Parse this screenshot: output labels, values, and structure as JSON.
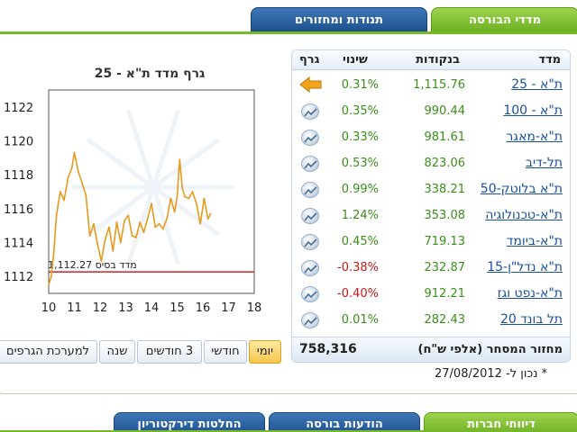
{
  "top_tabs": [
    {
      "label": "מדדי הבורסה",
      "color": "#78b62a",
      "active": true
    },
    {
      "label": "תנודות ומחזורים",
      "color": "#1c4f8c",
      "active": false
    }
  ],
  "table": {
    "headers": {
      "index": "מדד",
      "points": "בנקודות",
      "change": "שינוי",
      "graph": "גרף"
    },
    "rows": [
      {
        "name": "ת\"א - 25",
        "points": "1,115.76",
        "change": "0.31%",
        "direction": "up",
        "selected": true
      },
      {
        "name": "ת\"א - 100",
        "points": "990.44",
        "change": "0.35%",
        "direction": "up"
      },
      {
        "name": "ת\"א-מאגר",
        "points": "981.61",
        "change": "0.33%",
        "direction": "up"
      },
      {
        "name": "תל-דיב",
        "points": "823.06",
        "change": "0.53%",
        "direction": "up"
      },
      {
        "name": "ת\"א בלוטק-50",
        "points": "338.21",
        "change": "0.99%",
        "direction": "up"
      },
      {
        "name": "ת\"א-טכנולוגיה",
        "points": "353.08",
        "change": "1.24%",
        "direction": "up"
      },
      {
        "name": "ת\"א-ביומד",
        "points": "719.13",
        "change": "0.45%",
        "direction": "up"
      },
      {
        "name": "ת\"א נדל\"ן-15",
        "points": "232.87",
        "change": "-0.38%",
        "direction": "down"
      },
      {
        "name": "ת\"א-נפט וגז",
        "points": "912.21",
        "change": "-0.40%",
        "direction": "down"
      },
      {
        "name": "תל בונד 20",
        "points": "282.43",
        "change": "0.01%",
        "direction": "up"
      }
    ],
    "footer_label": "מחזור המסחר (אלפי ש\"ח)",
    "footer_value": "758,316"
  },
  "chart_data": {
    "type": "line",
    "title": "גרף מדד ת\"א - 25",
    "x_ticks": [
      "10",
      "11",
      "12",
      "13",
      "14",
      "15",
      "16",
      "17",
      "18"
    ],
    "y_ticks": [
      "1112",
      "1114",
      "1116",
      "1118",
      "1120",
      "1122"
    ],
    "xlim": [
      10,
      18
    ],
    "ylim": [
      1111,
      1123
    ],
    "base_value": 1112.27,
    "base_label": "מדד בסיס 1,112.27",
    "series_color": "#e59a1e",
    "base_color": "#d42020",
    "x": [
      10.0,
      10.1,
      10.2,
      10.3,
      10.45,
      10.6,
      10.75,
      10.9,
      11.0,
      11.15,
      11.3,
      11.45,
      11.6,
      11.75,
      11.9,
      12.05,
      12.2,
      12.35,
      12.5,
      12.65,
      12.8,
      12.95,
      13.1,
      13.25,
      13.4,
      13.55,
      13.7,
      13.85,
      14.0,
      14.15,
      14.3,
      14.45,
      14.6,
      14.75,
      14.9,
      15.0,
      15.1,
      15.2,
      15.3,
      15.45,
      15.6,
      15.75,
      15.9,
      16.05,
      16.2,
      16.3
    ],
    "y": [
      1111.5,
      1112.0,
      1113.4,
      1115.6,
      1117.0,
      1116.5,
      1117.8,
      1118.4,
      1119.3,
      1118.2,
      1117.5,
      1116.8,
      1114.4,
      1115.1,
      1113.9,
      1112.9,
      1114.2,
      1114.9,
      1113.5,
      1115.2,
      1114.0,
      1115.3,
      1115.6,
      1114.4,
      1114.3,
      1115.2,
      1114.6,
      1115.4,
      1116.3,
      1114.9,
      1115.1,
      1114.8,
      1115.4,
      1116.6,
      1115.8,
      1116.7,
      1118.9,
      1117.2,
      1116.7,
      1116.6,
      1117.0,
      1116.3,
      1115.1,
      1116.6,
      1115.4,
      1115.7
    ]
  },
  "periods": [
    {
      "label": "יומי",
      "active": true
    },
    {
      "label": "חודשי",
      "active": false
    },
    {
      "label": "3 חודשים",
      "active": false
    },
    {
      "label": "שנה",
      "active": false
    },
    {
      "label": "למערכת הגרפים",
      "active": false
    }
  ],
  "note": "* נכון ל- 27/08/2012",
  "bottom_tabs": [
    {
      "label": "דיווחי חברות",
      "color": "#78b62a"
    },
    {
      "label": "הודעות בורסה",
      "color": "#1c4f8c"
    },
    {
      "label": "החלטות דירקטוריון",
      "color": "#1c4f8c"
    }
  ]
}
